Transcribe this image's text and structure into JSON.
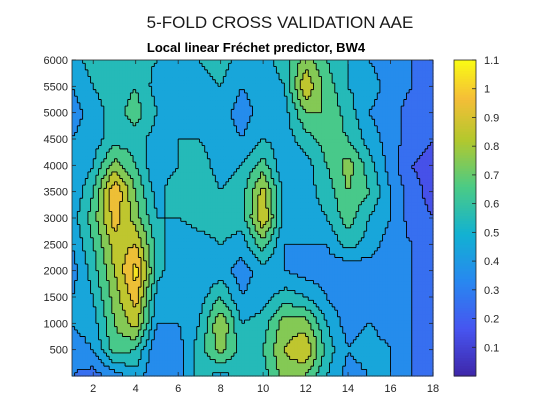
{
  "figure": {
    "suptitle": "5-FOLD CROSS VALIDATION AAE"
  },
  "chart_data": {
    "type": "heatmap",
    "subtype": "filled-contour",
    "title": "Local linear Fréchet predictor, BW4",
    "xlabel": "",
    "ylabel": "",
    "xlim": [
      1,
      18
    ],
    "ylim": [
      0,
      6000
    ],
    "xticks": [
      "2",
      "4",
      "6",
      "8",
      "10",
      "12",
      "14",
      "16",
      "18"
    ],
    "yticks": [
      "500",
      "1000",
      "1500",
      "2000",
      "2500",
      "3000",
      "3500",
      "4000",
      "4500",
      "5000",
      "5500",
      "6000"
    ],
    "colorbar": {
      "range": [
        0,
        1.1
      ],
      "ticks": [
        "0.1",
        "0.2",
        "0.3",
        "0.4",
        "0.5",
        "0.6",
        "0.7",
        "0.8",
        "0.9",
        "1",
        "1.1"
      ],
      "colormap": "parula"
    },
    "x": [
      1,
      2,
      3,
      4,
      5,
      6,
      7,
      8,
      9,
      10,
      11,
      12,
      13,
      14,
      15,
      16,
      17,
      18
    ],
    "y": [
      0,
      500,
      1000,
      1500,
      2000,
      2500,
      3000,
      3500,
      4000,
      4500,
      5000,
      5500,
      6000
    ],
    "z": [
      [
        0.3,
        0.25,
        0.35,
        0.45,
        0.3,
        0.35,
        0.55,
        0.45,
        0.55,
        0.55,
        0.75,
        0.7,
        0.5,
        0.35,
        0.4,
        0.4,
        0.3,
        0.25
      ],
      [
        0.35,
        0.4,
        0.65,
        0.6,
        0.3,
        0.35,
        0.55,
        0.75,
        0.55,
        0.6,
        0.8,
        0.9,
        0.55,
        0.4,
        0.45,
        0.4,
        0.3,
        0.25
      ],
      [
        0.4,
        0.45,
        0.7,
        0.85,
        0.4,
        0.4,
        0.5,
        0.8,
        0.5,
        0.55,
        0.75,
        0.75,
        0.5,
        0.35,
        0.4,
        0.35,
        0.3,
        0.25
      ],
      [
        0.4,
        0.5,
        0.75,
        0.95,
        0.45,
        0.4,
        0.45,
        0.6,
        0.4,
        0.45,
        0.55,
        0.5,
        0.4,
        0.3,
        0.35,
        0.35,
        0.3,
        0.25
      ],
      [
        0.35,
        0.55,
        0.8,
        1.05,
        0.55,
        0.4,
        0.4,
        0.45,
        0.35,
        0.45,
        0.4,
        0.35,
        0.35,
        0.3,
        0.35,
        0.35,
        0.3,
        0.25
      ],
      [
        0.4,
        0.6,
        0.85,
        0.9,
        0.55,
        0.4,
        0.45,
        0.5,
        0.45,
        0.65,
        0.4,
        0.4,
        0.4,
        0.55,
        0.45,
        0.35,
        0.3,
        0.2
      ],
      [
        0.45,
        0.65,
        0.95,
        0.75,
        0.5,
        0.5,
        0.55,
        0.55,
        0.55,
        0.9,
        0.45,
        0.45,
        0.5,
        0.65,
        0.5,
        0.4,
        0.25,
        0.2
      ],
      [
        0.4,
        0.6,
        1.0,
        0.7,
        0.45,
        0.6,
        0.6,
        0.5,
        0.55,
        0.85,
        0.45,
        0.45,
        0.55,
        0.7,
        0.6,
        0.4,
        0.25,
        0.15
      ],
      [
        0.4,
        0.5,
        0.75,
        0.6,
        0.4,
        0.5,
        0.55,
        0.45,
        0.5,
        0.65,
        0.4,
        0.45,
        0.6,
        0.75,
        0.55,
        0.35,
        0.2,
        0.15
      ],
      [
        0.4,
        0.45,
        0.55,
        0.55,
        0.45,
        0.5,
        0.5,
        0.45,
        0.4,
        0.5,
        0.45,
        0.55,
        0.65,
        0.6,
        0.45,
        0.35,
        0.25,
        0.2
      ],
      [
        0.35,
        0.45,
        0.55,
        0.65,
        0.5,
        0.45,
        0.5,
        0.45,
        0.35,
        0.45,
        0.45,
        0.7,
        0.7,
        0.55,
        0.4,
        0.35,
        0.25,
        0.25
      ],
      [
        0.4,
        0.5,
        0.55,
        0.6,
        0.45,
        0.45,
        0.45,
        0.5,
        0.4,
        0.45,
        0.5,
        0.9,
        0.65,
        0.5,
        0.45,
        0.35,
        0.3,
        0.25
      ],
      [
        0.45,
        0.55,
        0.55,
        0.55,
        0.5,
        0.5,
        0.5,
        0.55,
        0.45,
        0.45,
        0.55,
        0.75,
        0.6,
        0.5,
        0.4,
        0.35,
        0.3,
        0.25
      ]
    ]
  }
}
